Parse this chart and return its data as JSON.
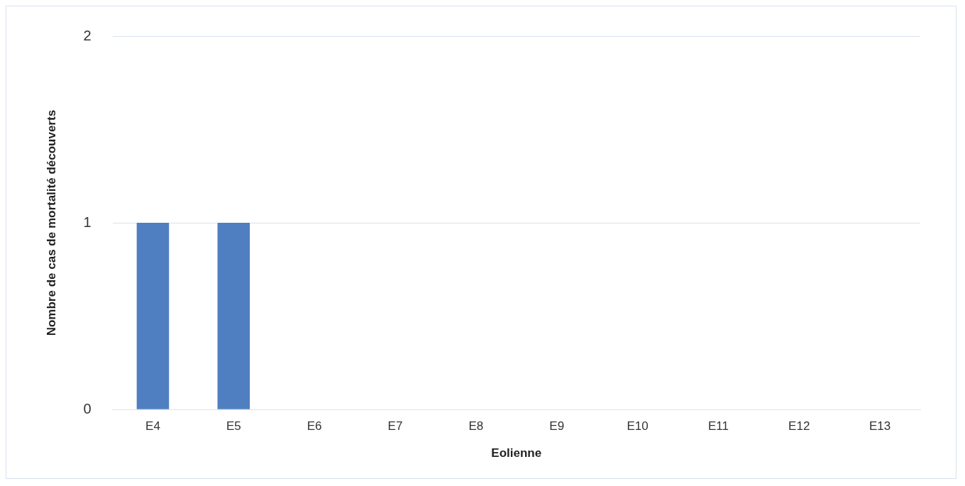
{
  "chart_data": {
    "type": "bar",
    "categories": [
      "E4",
      "E5",
      "E6",
      "E7",
      "E8",
      "E9",
      "E10",
      "E11",
      "E12",
      "E13"
    ],
    "values": [
      1,
      1,
      0,
      0,
      0,
      0,
      0,
      0,
      0,
      0
    ],
    "color": "#4f7fc0",
    "xlabel": "Eolienne",
    "ylabel": "Nombre de cas de mortalité découverts",
    "ylim": [
      0,
      2
    ],
    "yticks": [
      0,
      1,
      2
    ],
    "grid": "y",
    "legend": false
  }
}
